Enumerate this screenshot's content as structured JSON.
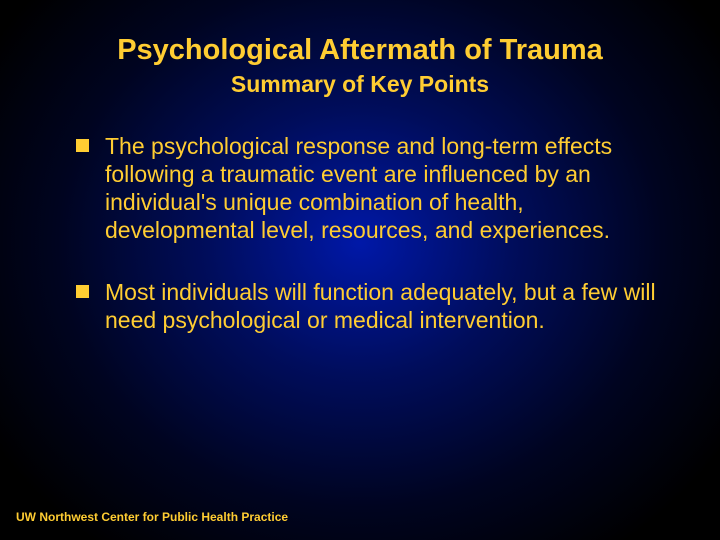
{
  "slide": {
    "background": {
      "gradient_center": "#0018a8",
      "gradient_mid": "#000d5c",
      "gradient_outer": "#000420",
      "gradient_edge": "#000000"
    },
    "title": {
      "text": "Psychological Aftermath of Trauma",
      "color": "#ffcd32",
      "fontsize": 29,
      "weight": "bold"
    },
    "subtitle": {
      "text": "Summary of Key Points",
      "color": "#ffcd32",
      "fontsize": 23,
      "weight": "bold"
    },
    "bullets": {
      "marker_color": "#ffcd32",
      "text_color": "#ffcd32",
      "fontsize": 23,
      "items": [
        "The psychological response and long-term effects following a traumatic event are influenced by an individual's unique combination of health, developmental level, resources, and experiences.",
        "Most individuals will function adequately, but a few will need psychological or medical intervention."
      ]
    },
    "footer": {
      "text": "UW Northwest Center for Public Health Practice",
      "color": "#ffcd32",
      "fontsize": 12,
      "weight": "bold"
    }
  }
}
